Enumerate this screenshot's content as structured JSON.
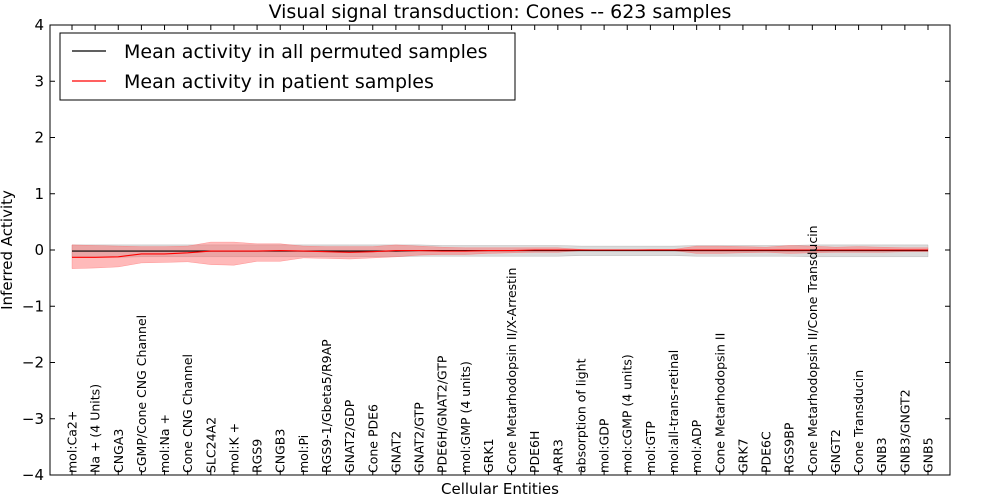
{
  "chart_data": {
    "type": "line",
    "title": "Visual signal transduction: Cones -- 623 samples",
    "xlabel": "Cellular Entities",
    "ylabel": "Inferred Activity",
    "ylim": [
      -4,
      4
    ],
    "yticks": [
      -4,
      -3,
      -2,
      -1,
      0,
      1,
      2,
      3,
      4
    ],
    "ytick_labels": [
      "−4",
      "−3",
      "−2",
      "−1",
      "0",
      "1",
      "2",
      "3",
      "4"
    ],
    "legend_position": "upper-left",
    "categories": [
      "mol:Ca2+",
      "Na + (4 Units)",
      "CNGA3",
      "cGMP/Cone CNG Channel",
      "mol:Na +",
      "Cone CNG Channel",
      "SLC24A2",
      "mol:K +",
      "RGS9",
      "CNGB3",
      "mol:Pi",
      "RGS9-1/Gbeta5/R9AP",
      "GNAT2/GDP",
      "Cone PDE6",
      "GNAT2",
      "GNAT2/GTP",
      "PDE6H/GNAT2/GTP",
      "mol:GMP (4 units)",
      "GRK1",
      "Cone Metarhodopsin II/X-Arrestin",
      "PDE6H",
      "ARR3",
      "absorption of light",
      "mol:GDP",
      "mol:cGMP (4 units)",
      "mol:GTP",
      "mol:all-trans-retinal",
      "mol:ADP",
      "Cone Metarhodopsin II",
      "GRK7",
      "PDE6C",
      "RGS9BP",
      "Cone Metarhodopsin II/Cone Transducin",
      "GNGT2",
      "Cone Transducin",
      "GNB3",
      "GNB3/GNGT2",
      "GNB5"
    ],
    "series": [
      {
        "name": "Mean activity in all permuted samples",
        "color": "#000000",
        "band_color": "#999999",
        "values": [
          -0.02,
          -0.02,
          -0.02,
          -0.02,
          -0.02,
          -0.02,
          -0.02,
          -0.02,
          -0.02,
          -0.02,
          -0.02,
          -0.02,
          -0.02,
          -0.02,
          -0.02,
          -0.01,
          -0.01,
          -0.01,
          -0.01,
          -0.01,
          -0.01,
          -0.01,
          -0.01,
          -0.01,
          -0.01,
          -0.01,
          -0.01,
          -0.01,
          -0.01,
          -0.01,
          -0.01,
          -0.01,
          -0.01,
          -0.01,
          -0.01,
          -0.01,
          -0.01,
          -0.01
        ],
        "lower": [
          -0.13,
          -0.13,
          -0.13,
          -0.12,
          -0.12,
          -0.12,
          -0.12,
          -0.12,
          -0.12,
          -0.12,
          -0.12,
          -0.12,
          -0.12,
          -0.12,
          -0.12,
          -0.11,
          -0.11,
          -0.11,
          -0.11,
          -0.11,
          -0.11,
          -0.11,
          -0.1,
          -0.1,
          -0.1,
          -0.1,
          -0.1,
          -0.11,
          -0.11,
          -0.11,
          -0.11,
          -0.11,
          -0.12,
          -0.12,
          -0.12,
          -0.12,
          -0.12,
          -0.12
        ],
        "upper": [
          0.09,
          0.09,
          0.09,
          0.09,
          0.09,
          0.09,
          0.09,
          0.09,
          0.09,
          0.09,
          0.09,
          0.09,
          0.09,
          0.09,
          0.09,
          0.09,
          0.08,
          0.08,
          0.08,
          0.08,
          0.08,
          0.08,
          0.07,
          0.07,
          0.07,
          0.07,
          0.07,
          0.08,
          0.08,
          0.08,
          0.08,
          0.08,
          0.09,
          0.09,
          0.09,
          0.09,
          0.09,
          0.09
        ]
      },
      {
        "name": "Mean activity in patient samples",
        "color": "#ff0000",
        "band_color": "#ff6666",
        "values": [
          -0.13,
          -0.13,
          -0.12,
          -0.07,
          -0.07,
          -0.05,
          -0.02,
          -0.02,
          -0.02,
          -0.01,
          -0.02,
          -0.03,
          -0.04,
          -0.03,
          -0.01,
          -0.01,
          -0.02,
          -0.02,
          -0.01,
          -0.01,
          0.0,
          0.0,
          0.0,
          0.0,
          0.0,
          0.0,
          0.0,
          0.0,
          0.0,
          0.0,
          0.0,
          0.0,
          0.0,
          0.0,
          0.0,
          0.0,
          0.0,
          0.0
        ],
        "lower": [
          -0.33,
          -0.32,
          -0.3,
          -0.23,
          -0.22,
          -0.21,
          -0.26,
          -0.27,
          -0.2,
          -0.2,
          -0.14,
          -0.15,
          -0.16,
          -0.14,
          -0.12,
          -0.09,
          -0.08,
          -0.08,
          -0.06,
          -0.05,
          -0.04,
          -0.04,
          -0.01,
          0.0,
          0.0,
          -0.01,
          -0.01,
          -0.06,
          -0.06,
          -0.05,
          -0.04,
          -0.06,
          -0.05,
          -0.04,
          -0.04,
          -0.04,
          -0.03,
          -0.03
        ],
        "upper": [
          0.09,
          0.08,
          0.07,
          0.06,
          0.06,
          0.07,
          0.14,
          0.14,
          0.11,
          0.11,
          0.07,
          0.06,
          0.06,
          0.06,
          0.09,
          0.07,
          0.05,
          0.04,
          0.04,
          0.04,
          0.04,
          0.04,
          0.01,
          0.0,
          0.0,
          0.01,
          0.01,
          0.07,
          0.07,
          0.06,
          0.05,
          0.08,
          0.07,
          0.05,
          0.06,
          0.05,
          0.04,
          0.04
        ]
      }
    ]
  }
}
